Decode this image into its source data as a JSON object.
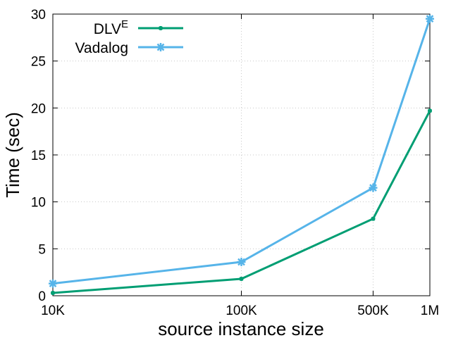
{
  "chart_data": {
    "type": "line",
    "title": "",
    "xlabel": "source instance size",
    "ylabel": "Time (sec)",
    "categories": [
      "10K",
      "100K",
      "500K",
      "1M"
    ],
    "x": [
      10000,
      100000,
      500000,
      1000000
    ],
    "xscale": "log",
    "xlim": [
      10000,
      1000000
    ],
    "ylim": [
      0,
      30
    ],
    "yticks": [
      0,
      5,
      10,
      15,
      20,
      25,
      30
    ],
    "grid": true,
    "legend_position": "top-left",
    "series": [
      {
        "name_main": "DLV",
        "name_sup": "E",
        "color": "#009e73",
        "marker": "small-star",
        "values": [
          0.3,
          1.8,
          8.2,
          19.7
        ]
      },
      {
        "name_main": "Vadalog",
        "name_sup": "",
        "color": "#56b4e9",
        "marker": "large-star",
        "values": [
          1.3,
          3.6,
          11.5,
          29.5
        ]
      }
    ]
  }
}
